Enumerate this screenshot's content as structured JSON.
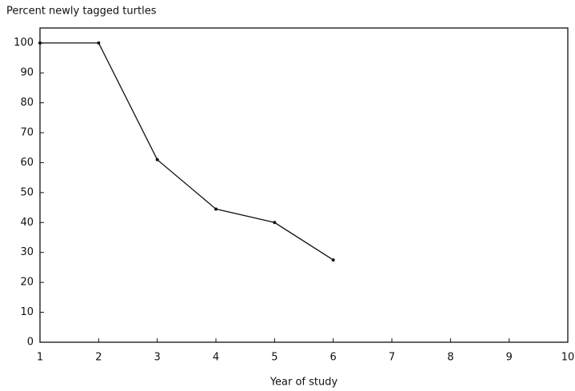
{
  "chart_data": {
    "type": "line",
    "title": "Percent newly tagged turtles",
    "xlabel": "Year of study",
    "x": [
      1,
      2,
      3,
      4,
      5,
      6
    ],
    "series": [
      {
        "name": "Percent newly tagged",
        "color": "#111111",
        "values": [
          100,
          100,
          61,
          44.5,
          40,
          27.5
        ]
      }
    ],
    "xlim": [
      1,
      10
    ],
    "xticks": [
      1,
      2,
      3,
      4,
      5,
      6,
      7,
      8,
      9,
      10
    ],
    "ylim": [
      0,
      105
    ],
    "yticks": [
      0,
      10,
      20,
      30,
      40,
      50,
      60,
      70,
      80,
      90,
      100
    ],
    "grid": false
  }
}
